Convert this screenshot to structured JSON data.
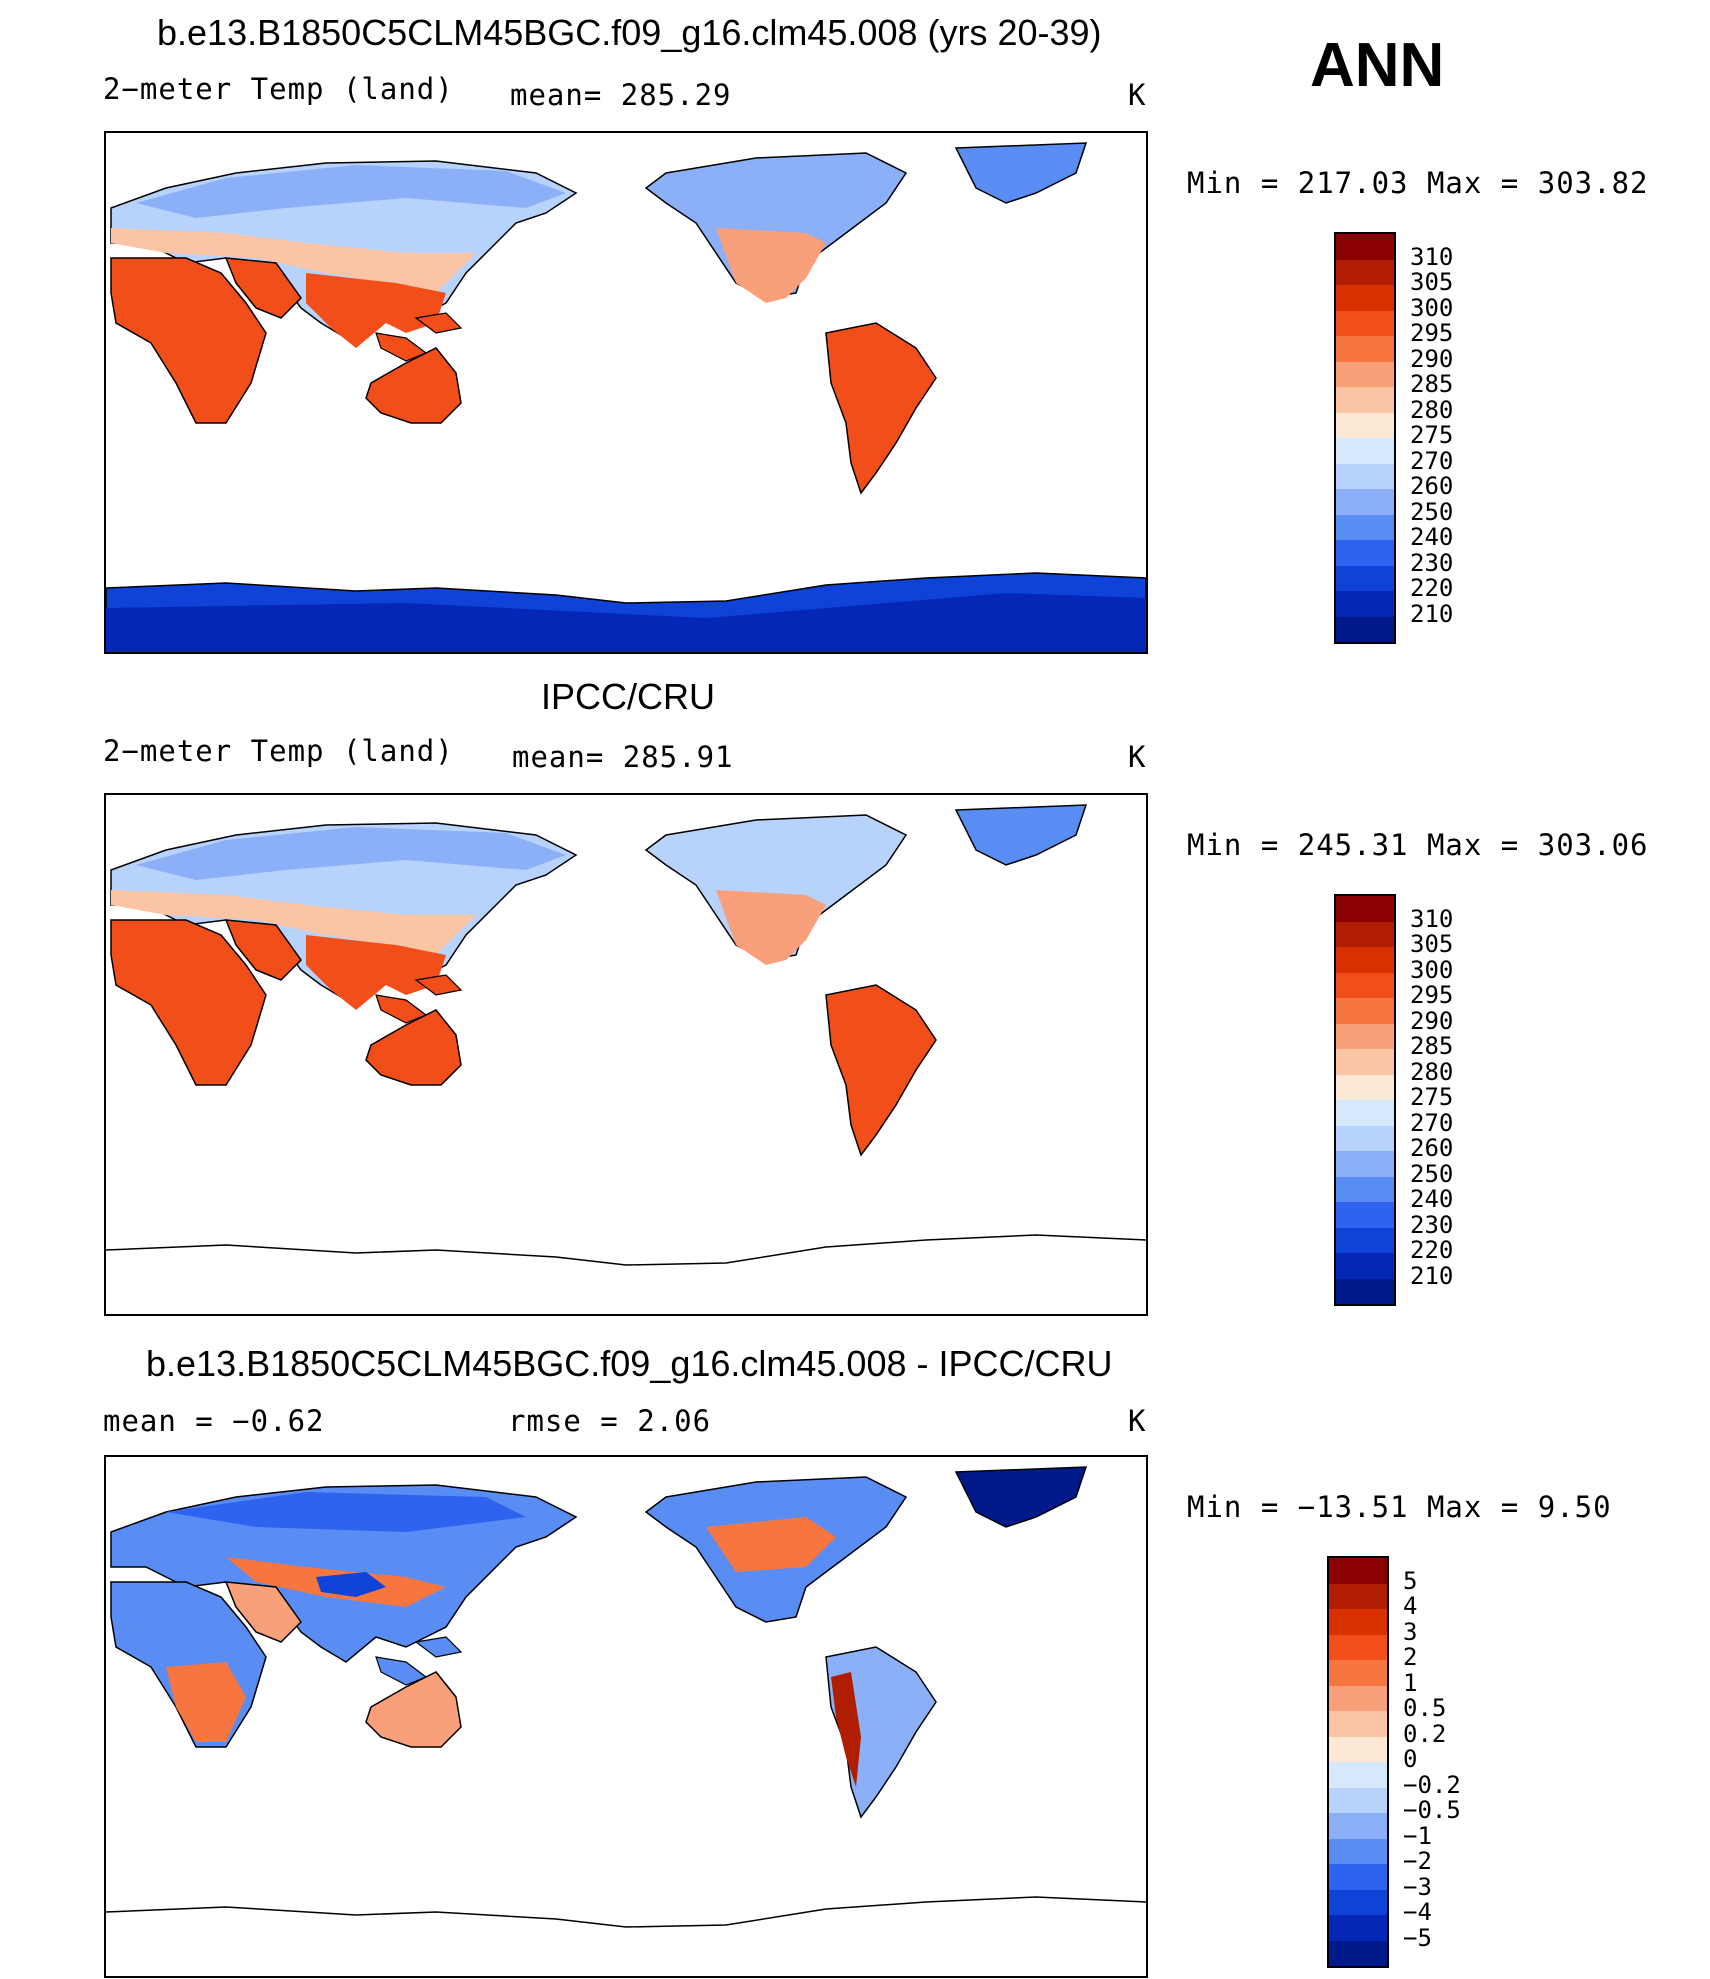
{
  "season": "ANN",
  "panels": [
    {
      "title": "b.e13.B1850C5CLM45BGC.f09_g16.clm45.008 (yrs 20-39)",
      "left_label": "2−meter Temp (land)",
      "mid_label": "mean= 285.29",
      "unit": "K",
      "minmax": "Min = 217.03 Max = 303.82",
      "colorbar": {
        "levels": [
          "310",
          "305",
          "300",
          "295",
          "290",
          "285",
          "280",
          "275",
          "270",
          "260",
          "250",
          "240",
          "230",
          "220",
          "210"
        ],
        "colors": [
          "#8b0000",
          "#b01d00",
          "#d93000",
          "#f24e1a",
          "#f7763f",
          "#f9a07b",
          "#fbc4a5",
          "#fde8d5",
          "#d6e8fb",
          "#b7d2fb",
          "#8bb0f8",
          "#5a8df4",
          "#2d63ef",
          "#0f43d8",
          "#0428b5",
          "#001a8c"
        ]
      }
    },
    {
      "title": "IPCC/CRU",
      "left_label": "2−meter Temp (land)",
      "mid_label": "mean= 285.91",
      "unit": "K",
      "minmax": "Min = 245.31 Max = 303.06",
      "colorbar": {
        "levels": [
          "310",
          "305",
          "300",
          "295",
          "290",
          "285",
          "280",
          "275",
          "270",
          "260",
          "250",
          "240",
          "230",
          "220",
          "210"
        ],
        "colors": [
          "#8b0000",
          "#b01d00",
          "#d93000",
          "#f24e1a",
          "#f7763f",
          "#f9a07b",
          "#fbc4a5",
          "#fde8d5",
          "#d6e8fb",
          "#b7d2fb",
          "#8bb0f8",
          "#5a8df4",
          "#2d63ef",
          "#0f43d8",
          "#0428b5",
          "#001a8c"
        ]
      }
    },
    {
      "title": "b.e13.B1850C5CLM45BGC.f09_g16.clm45.008 - IPCC/CRU",
      "left_label": "mean = −0.62",
      "mid_label": "rmse = 2.06",
      "unit": "K",
      "minmax": "Min = −13.51 Max = 9.50",
      "colorbar": {
        "levels": [
          "5",
          "4",
          "3",
          "2",
          "1",
          "0.5",
          "0.2",
          "0",
          "−0.2",
          "−0.5",
          "−1",
          "−2",
          "−3",
          "−4",
          "−5"
        ],
        "colors": [
          "#8b0000",
          "#b01d00",
          "#d93000",
          "#f24e1a",
          "#f7763f",
          "#f9a07b",
          "#fbc4a5",
          "#fde8d5",
          "#d6e8fb",
          "#b7d2fb",
          "#8bb0f8",
          "#5a8df4",
          "#2d63ef",
          "#0f43d8",
          "#0428b5",
          "#001a8c"
        ]
      }
    }
  ],
  "chart_data": [
    {
      "type": "heatmap",
      "title": "b.e13.B1850C5CLM45BGC.f09_g16.clm45.008 (yrs 20-39)",
      "variable": "2−meter Temp (land)",
      "mean": 285.29,
      "min": 217.03,
      "max": 303.82,
      "units": "K"
    },
    {
      "type": "heatmap",
      "title": "IPCC/CRU",
      "variable": "2−meter Temp (land)",
      "mean": 285.91,
      "min": 245.31,
      "max": 303.06,
      "units": "K"
    },
    {
      "type": "heatmap",
      "title": "b.e13.B1850C5CLM45BGC.f09_g16.clm45.008 - IPCC/CRU",
      "mean": -0.62,
      "rmse": 2.06,
      "min": -13.51,
      "max": 9.5,
      "units": "K"
    }
  ]
}
